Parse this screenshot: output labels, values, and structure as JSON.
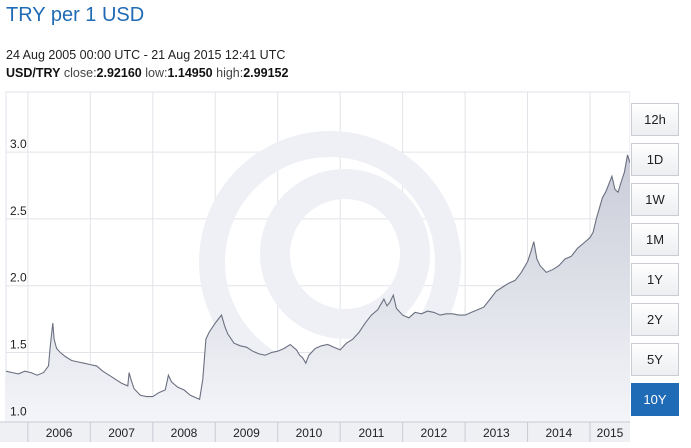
{
  "header": {
    "title": "TRY per 1 USD",
    "date_range": "24 Aug 2005 00:00 UTC - 21 Aug 2015 12:41 UTC",
    "pair": "USD/TRY",
    "close_label": "close:",
    "close_value": "2.92160",
    "low_label": "low:",
    "low_value": "1.14950",
    "high_label": "high:",
    "high_value": "2.99152"
  },
  "timeframes": [
    {
      "label": "12h",
      "active": false
    },
    {
      "label": "1D",
      "active": false
    },
    {
      "label": "1W",
      "active": false
    },
    {
      "label": "1M",
      "active": false
    },
    {
      "label": "1Y",
      "active": false
    },
    {
      "label": "2Y",
      "active": false
    },
    {
      "label": "5Y",
      "active": false
    },
    {
      "label": "10Y",
      "active": true
    }
  ],
  "colors": {
    "line": "#6b7080",
    "area_top": "#c9ccd8",
    "area_bottom": "#f4f5f9",
    "accent": "#1f6bb5",
    "grid": "#e1e3e8"
  },
  "chart_data": {
    "type": "area",
    "x_ticks": [
      "2006",
      "2007",
      "2008",
      "2009",
      "2010",
      "2011",
      "2012",
      "2013",
      "2014",
      "2015"
    ],
    "y_ticks": [
      "1.0",
      "1.5",
      "2.0",
      "2.5",
      "3.0"
    ],
    "xlim": [
      2005.65,
      2015.64
    ],
    "ylim": [
      0.98,
      3.45
    ],
    "grid": true,
    "watermark": "xe",
    "x": [
      2005.65,
      2005.75,
      2005.85,
      2005.95,
      2006.05,
      2006.15,
      2006.25,
      2006.33,
      2006.36,
      2006.4,
      2006.42,
      2006.46,
      2006.52,
      2006.6,
      2006.7,
      2006.8,
      2006.9,
      2007.0,
      2007.1,
      2007.2,
      2007.3,
      2007.4,
      2007.5,
      2007.6,
      2007.62,
      2007.65,
      2007.7,
      2007.8,
      2007.9,
      2008.0,
      2008.1,
      2008.2,
      2008.25,
      2008.3,
      2008.4,
      2008.5,
      2008.6,
      2008.7,
      2008.75,
      2008.8,
      2008.85,
      2008.9,
      2009.0,
      2009.1,
      2009.15,
      2009.2,
      2009.3,
      2009.4,
      2009.5,
      2009.6,
      2009.7,
      2009.8,
      2009.9,
      2010.0,
      2010.1,
      2010.2,
      2010.3,
      2010.35,
      2010.4,
      2010.45,
      2010.5,
      2010.6,
      2010.7,
      2010.8,
      2010.9,
      2011.0,
      2011.1,
      2011.2,
      2011.3,
      2011.4,
      2011.5,
      2011.6,
      2011.7,
      2011.75,
      2011.8,
      2011.85,
      2011.9,
      2012.0,
      2012.1,
      2012.2,
      2012.3,
      2012.4,
      2012.5,
      2012.6,
      2012.7,
      2012.8,
      2012.9,
      2013.0,
      2013.1,
      2013.2,
      2013.3,
      2013.4,
      2013.5,
      2013.6,
      2013.7,
      2013.8,
      2013.9,
      2014.0,
      2014.05,
      2014.1,
      2014.15,
      2014.2,
      2014.3,
      2014.4,
      2014.5,
      2014.6,
      2014.7,
      2014.8,
      2014.9,
      2015.0,
      2015.05,
      2015.1,
      2015.15,
      2015.2,
      2015.25,
      2015.3,
      2015.35,
      2015.4,
      2015.45,
      2015.5,
      2015.55,
      2015.6,
      2015.64
    ],
    "y": [
      1.36,
      1.35,
      1.34,
      1.36,
      1.35,
      1.33,
      1.35,
      1.4,
      1.55,
      1.72,
      1.6,
      1.53,
      1.5,
      1.47,
      1.44,
      1.43,
      1.42,
      1.41,
      1.4,
      1.36,
      1.33,
      1.3,
      1.27,
      1.25,
      1.35,
      1.3,
      1.23,
      1.18,
      1.17,
      1.17,
      1.2,
      1.22,
      1.33,
      1.28,
      1.24,
      1.22,
      1.18,
      1.16,
      1.15,
      1.3,
      1.6,
      1.65,
      1.72,
      1.78,
      1.7,
      1.64,
      1.57,
      1.55,
      1.54,
      1.51,
      1.49,
      1.48,
      1.5,
      1.51,
      1.53,
      1.56,
      1.52,
      1.48,
      1.46,
      1.42,
      1.48,
      1.53,
      1.55,
      1.56,
      1.54,
      1.52,
      1.57,
      1.6,
      1.65,
      1.72,
      1.78,
      1.82,
      1.9,
      1.85,
      1.88,
      1.93,
      1.83,
      1.78,
      1.76,
      1.8,
      1.79,
      1.81,
      1.8,
      1.78,
      1.79,
      1.79,
      1.78,
      1.78,
      1.8,
      1.82,
      1.84,
      1.9,
      1.96,
      1.99,
      2.02,
      2.04,
      2.1,
      2.18,
      2.25,
      2.33,
      2.2,
      2.15,
      2.1,
      2.12,
      2.15,
      2.2,
      2.22,
      2.28,
      2.32,
      2.36,
      2.4,
      2.5,
      2.58,
      2.66,
      2.7,
      2.76,
      2.82,
      2.72,
      2.7,
      2.78,
      2.85,
      2.98,
      2.92
    ]
  }
}
